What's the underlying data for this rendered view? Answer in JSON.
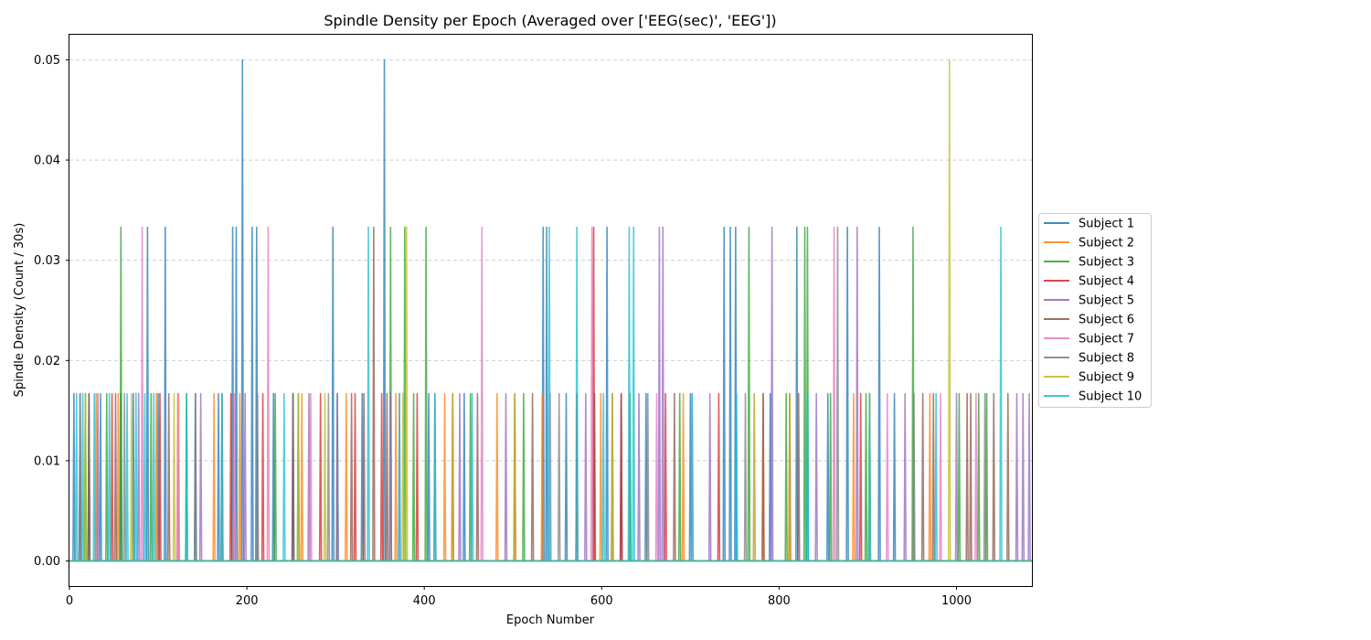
{
  "chart_data": {
    "type": "line",
    "title": "Spindle Density per Epoch (Averaged over ['EEG(sec)', 'EEG'])",
    "xlabel": "Epoch Number",
    "ylabel": "Spindle Density (Count / 30s)",
    "xlim": [
      0,
      1085
    ],
    "ylim": [
      -0.0025,
      0.0525
    ],
    "xticks": [
      0,
      200,
      400,
      600,
      800,
      1000
    ],
    "xtick_labels": [
      "0",
      "200",
      "400",
      "600",
      "800",
      "1000"
    ],
    "yticks": [
      0.0,
      0.01,
      0.02,
      0.03,
      0.04,
      0.05
    ],
    "ytick_labels": [
      "0.00",
      "0.01",
      "0.02",
      "0.03",
      "0.04",
      "0.05"
    ],
    "grid": "y-dashed",
    "legend_position": "right-outside",
    "series": [
      {
        "name": "Subject 1",
        "color": "#1f77b4",
        "points": [
          [
            5,
            0.0167
          ],
          [
            12,
            0.0167
          ],
          [
            22,
            0.0167
          ],
          [
            35,
            0.0167
          ],
          [
            58,
            0.0167
          ],
          [
            72,
            0.0167
          ],
          [
            88,
            0.0333
          ],
          [
            100,
            0.0167
          ],
          [
            108,
            0.0333
          ],
          [
            142,
            0.0167
          ],
          [
            168,
            0.0167
          ],
          [
            184,
            0.0333
          ],
          [
            188,
            0.0333
          ],
          [
            195,
            0.05
          ],
          [
            206,
            0.0333
          ],
          [
            211,
            0.0333
          ],
          [
            230,
            0.0167
          ],
          [
            252,
            0.0167
          ],
          [
            297,
            0.0333
          ],
          [
            330,
            0.0167
          ],
          [
            355,
            0.05
          ],
          [
            405,
            0.0167
          ],
          [
            445,
            0.0167
          ],
          [
            534,
            0.0333
          ],
          [
            538,
            0.0333
          ],
          [
            560,
            0.0167
          ],
          [
            606,
            0.0333
          ],
          [
            622,
            0.0167
          ],
          [
            650,
            0.0167
          ],
          [
            700,
            0.0167
          ],
          [
            738,
            0.0333
          ],
          [
            745,
            0.0333
          ],
          [
            751,
            0.0333
          ],
          [
            790,
            0.0167
          ],
          [
            820,
            0.0333
          ],
          [
            855,
            0.0167
          ],
          [
            877,
            0.0333
          ],
          [
            913,
            0.0333
          ],
          [
            930,
            0.0167
          ]
        ]
      },
      {
        "name": "Subject 2",
        "color": "#ff7f0e",
        "points": [
          [
            30,
            0.0167
          ],
          [
            55,
            0.0167
          ],
          [
            98,
            0.0167
          ],
          [
            123,
            0.0167
          ],
          [
            163,
            0.0167
          ],
          [
            192,
            0.0167
          ],
          [
            262,
            0.0167
          ],
          [
            312,
            0.0167
          ],
          [
            368,
            0.0167
          ],
          [
            423,
            0.0167
          ],
          [
            482,
            0.0167
          ],
          [
            533,
            0.0167
          ],
          [
            599,
            0.0167
          ],
          [
            692,
            0.0167
          ],
          [
            782,
            0.0167
          ],
          [
            884,
            0.0167
          ],
          [
            970,
            0.0167
          ]
        ]
      },
      {
        "name": "Subject 3",
        "color": "#2ca02c",
        "points": [
          [
            18,
            0.0167
          ],
          [
            42,
            0.0167
          ],
          [
            58,
            0.0333
          ],
          [
            92,
            0.0167
          ],
          [
            132,
            0.0167
          ],
          [
            232,
            0.0167
          ],
          [
            258,
            0.0167
          ],
          [
            302,
            0.0167
          ],
          [
            362,
            0.0333
          ],
          [
            378,
            0.0333
          ],
          [
            388,
            0.0167
          ],
          [
            402,
            0.0333
          ],
          [
            452,
            0.0167
          ],
          [
            512,
            0.0167
          ],
          [
            592,
            0.0167
          ],
          [
            632,
            0.0167
          ],
          [
            688,
            0.0167
          ],
          [
            766,
            0.0333
          ],
          [
            808,
            0.0167
          ],
          [
            829,
            0.0333
          ],
          [
            832,
            0.0333
          ],
          [
            858,
            0.0167
          ],
          [
            898,
            0.0167
          ],
          [
            951,
            0.0333
          ],
          [
            1003,
            0.0167
          ],
          [
            1025,
            0.0167
          ],
          [
            1034,
            0.0167
          ]
        ]
      },
      {
        "name": "Subject 4",
        "color": "#d62728",
        "points": [
          [
            48,
            0.0167
          ],
          [
            102,
            0.0167
          ],
          [
            182,
            0.0167
          ],
          [
            218,
            0.0167
          ],
          [
            283,
            0.0167
          ],
          [
            322,
            0.0167
          ],
          [
            352,
            0.0167
          ],
          [
            392,
            0.0167
          ],
          [
            432,
            0.0167
          ],
          [
            502,
            0.0167
          ],
          [
            572,
            0.0167
          ],
          [
            591,
            0.0333
          ],
          [
            622,
            0.0167
          ],
          [
            672,
            0.0167
          ],
          [
            732,
            0.0167
          ],
          [
            812,
            0.0167
          ],
          [
            892,
            0.0167
          ]
        ]
      },
      {
        "name": "Subject 5",
        "color": "#9467bd",
        "points": [
          [
            32,
            0.0167
          ],
          [
            78,
            0.0167
          ],
          [
            148,
            0.0167
          ],
          [
            198,
            0.0167
          ],
          [
            270,
            0.0167
          ],
          [
            302,
            0.0167
          ],
          [
            362,
            0.0167
          ],
          [
            440,
            0.0167
          ],
          [
            492,
            0.0167
          ],
          [
            582,
            0.0167
          ],
          [
            642,
            0.0167
          ],
          [
            665,
            0.0333
          ],
          [
            669,
            0.0333
          ],
          [
            722,
            0.0167
          ],
          [
            792,
            0.0333
          ],
          [
            842,
            0.0167
          ],
          [
            888,
            0.0333
          ],
          [
            942,
            0.0167
          ],
          [
            1000,
            0.0167
          ],
          [
            1068,
            0.0167
          ],
          [
            1075,
            0.0167
          ],
          [
            1082,
            0.0167
          ]
        ]
      },
      {
        "name": "Subject 6",
        "color": "#8c564b",
        "points": [
          [
            22,
            0.0167
          ],
          [
            52,
            0.0167
          ],
          [
            112,
            0.0167
          ],
          [
            172,
            0.0167
          ],
          [
            252,
            0.0167
          ],
          [
            318,
            0.0167
          ],
          [
            332,
            0.0167
          ],
          [
            343,
            0.0333
          ],
          [
            358,
            0.0167
          ],
          [
            460,
            0.0167
          ],
          [
            522,
            0.0167
          ],
          [
            612,
            0.0167
          ],
          [
            682,
            0.0167
          ],
          [
            782,
            0.0167
          ],
          [
            822,
            0.0167
          ],
          [
            902,
            0.0167
          ],
          [
            962,
            0.0167
          ],
          [
            974,
            0.0167
          ],
          [
            1012,
            0.0167
          ],
          [
            1016,
            0.0167
          ],
          [
            1042,
            0.0167
          ],
          [
            1058,
            0.0167
          ]
        ]
      },
      {
        "name": "Subject 7",
        "color": "#e377c2",
        "points": [
          [
            82,
            0.0333
          ],
          [
            122,
            0.0167
          ],
          [
            186,
            0.0167
          ],
          [
            224,
            0.0333
          ],
          [
            272,
            0.0167
          ],
          [
            372,
            0.0167
          ],
          [
            465,
            0.0333
          ],
          [
            542,
            0.0167
          ],
          [
            589,
            0.0333
          ],
          [
            662,
            0.0167
          ],
          [
            702,
            0.0167
          ],
          [
            772,
            0.0167
          ],
          [
            862,
            0.0333
          ],
          [
            922,
            0.0167
          ],
          [
            982,
            0.0167
          ],
          [
            1022,
            0.0167
          ]
        ]
      },
      {
        "name": "Subject 8",
        "color": "#7f7f7f",
        "points": [
          [
            12,
            0.0167
          ],
          [
            62,
            0.0167
          ],
          [
            142,
            0.0167
          ],
          [
            212,
            0.0167
          ],
          [
            292,
            0.0167
          ],
          [
            412,
            0.0167
          ],
          [
            552,
            0.0167
          ],
          [
            652,
            0.0167
          ],
          [
            762,
            0.0167
          ],
          [
            866,
            0.0333
          ],
          [
            952,
            0.0167
          ],
          [
            1032,
            0.0167
          ]
        ]
      },
      {
        "name": "Subject 9",
        "color": "#bcbd22",
        "points": [
          [
            18,
            0.0167
          ],
          [
            70,
            0.0167
          ],
          [
            118,
            0.0167
          ],
          [
            258,
            0.0167
          ],
          [
            288,
            0.0167
          ],
          [
            376,
            0.0167
          ],
          [
            380,
            0.0333
          ],
          [
            432,
            0.0167
          ],
          [
            502,
            0.0167
          ],
          [
            612,
            0.0167
          ],
          [
            772,
            0.0167
          ],
          [
            812,
            0.0167
          ],
          [
            902,
            0.0167
          ],
          [
            992,
            0.05
          ]
        ]
      },
      {
        "name": "Subject 10",
        "color": "#17becf",
        "points": [
          [
            8,
            0.0167
          ],
          [
            15,
            0.0167
          ],
          [
            28,
            0.0167
          ],
          [
            45,
            0.0167
          ],
          [
            65,
            0.0167
          ],
          [
            75,
            0.0167
          ],
          [
            85,
            0.0167
          ],
          [
            95,
            0.0167
          ],
          [
            132,
            0.0167
          ],
          [
            172,
            0.0167
          ],
          [
            242,
            0.0167
          ],
          [
            337,
            0.0333
          ],
          [
            372,
            0.0167
          ],
          [
            412,
            0.0167
          ],
          [
            454,
            0.0167
          ],
          [
            541,
            0.0333
          ],
          [
            572,
            0.0333
          ],
          [
            602,
            0.0167
          ],
          [
            631,
            0.0333
          ],
          [
            636,
            0.0333
          ],
          [
            702,
            0.0167
          ],
          [
            752,
            0.0167
          ],
          [
            832,
            0.0167
          ],
          [
            902,
            0.0167
          ],
          [
            977,
            0.0167
          ],
          [
            1050,
            0.0333
          ]
        ]
      }
    ]
  }
}
